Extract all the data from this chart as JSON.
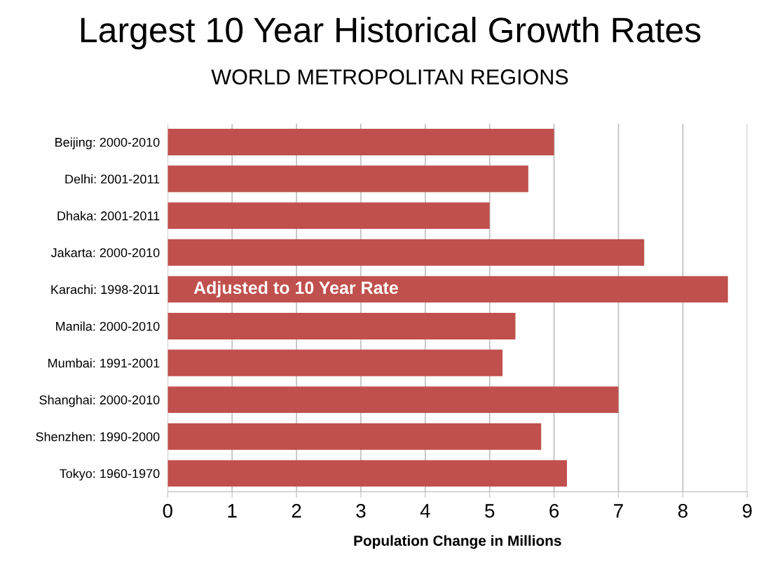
{
  "chart_data": {
    "type": "bar",
    "orientation": "horizontal",
    "title": "Largest 10 Year Historical Growth Rates",
    "subtitle": "WORLD METROPOLITAN REGIONS",
    "xlabel": "Population Change in Millions",
    "categories": [
      "Beijing: 2000-2010",
      "Delhi: 2001-2011",
      "Dhaka: 2001-2011",
      "Jakarta: 2000-2010",
      "Karachi: 1998-2011",
      "Manila: 2000-2010",
      "Mumbai: 1991-2001",
      "Shanghai: 2000-2010",
      "Shenzhen: 1990-2000",
      "Tokyo: 1960-1970"
    ],
    "values": [
      6.0,
      5.6,
      5.0,
      7.4,
      8.7,
      5.4,
      5.2,
      7.0,
      5.8,
      6.2
    ],
    "color": "#c0504d",
    "xlim": [
      0,
      9
    ],
    "xticks": [
      0,
      1,
      2,
      3,
      4,
      5,
      6,
      7,
      8,
      9
    ],
    "grid": "x",
    "annotations": [
      {
        "text": "Adjusted to 10 Year Rate",
        "x": 0.4,
        "y": "Karachi: 1998-2011"
      }
    ]
  }
}
